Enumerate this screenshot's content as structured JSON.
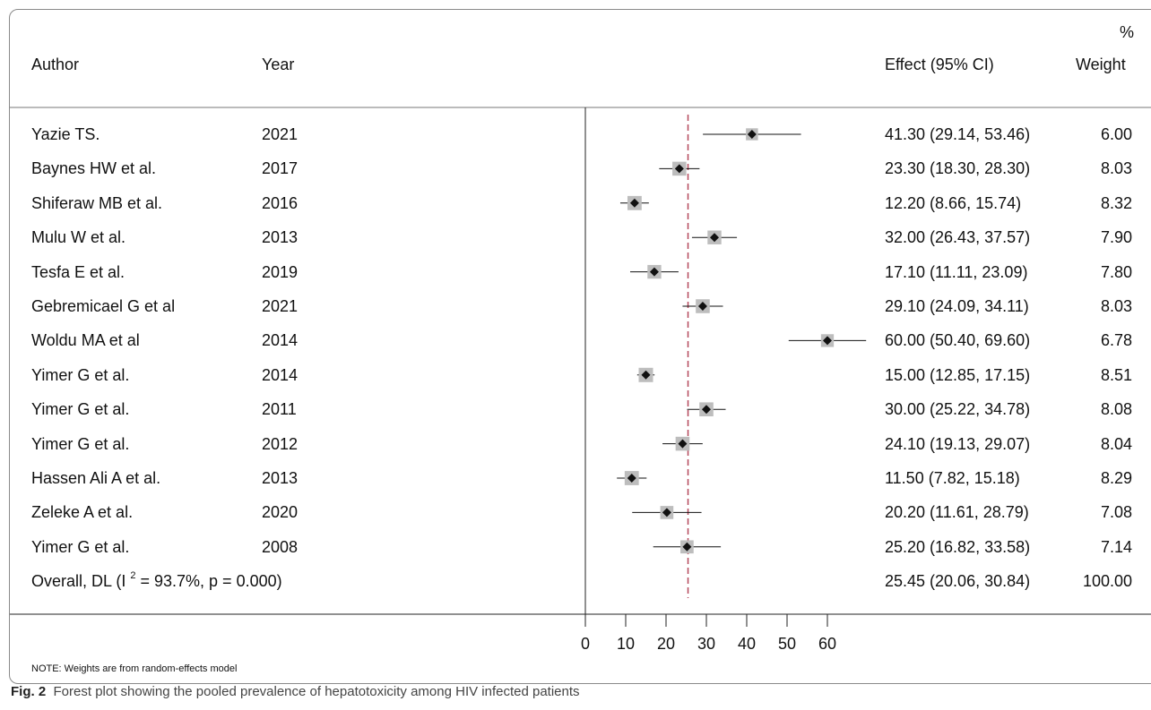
{
  "chart_data": {
    "type": "forest",
    "header": {
      "author": "Author",
      "year": "Year",
      "effect": "Effect (95% CI)",
      "weight_pct": "%",
      "weight": "Weight"
    },
    "studies": [
      {
        "author": "Yazie TS.",
        "year": "2021",
        "effect": 41.3,
        "lower": 29.14,
        "upper": 53.46,
        "effect_text": "41.30 (29.14, 53.46)",
        "weight": "6.00"
      },
      {
        "author": "Baynes HW et al.",
        "year": "2017",
        "effect": 23.3,
        "lower": 18.3,
        "upper": 28.3,
        "effect_text": "23.30 (18.30, 28.30)",
        "weight": "8.03"
      },
      {
        "author": "Shiferaw MB et al.",
        "year": "2016",
        "effect": 12.2,
        "lower": 8.66,
        "upper": 15.74,
        "effect_text": "12.20 (8.66, 15.74)",
        "weight": "8.32"
      },
      {
        "author": "Mulu W et al.",
        "year": "2013",
        "effect": 32.0,
        "lower": 26.43,
        "upper": 37.57,
        "effect_text": "32.00 (26.43, 37.57)",
        "weight": "7.90"
      },
      {
        "author": "Tesfa E et al.",
        "year": "2019",
        "effect": 17.1,
        "lower": 11.11,
        "upper": 23.09,
        "effect_text": "17.10 (11.11, 23.09)",
        "weight": "7.80"
      },
      {
        "author": "Gebremicael G et al",
        "year": "2021",
        "effect": 29.1,
        "lower": 24.09,
        "upper": 34.11,
        "effect_text": "29.10 (24.09, 34.11)",
        "weight": "8.03"
      },
      {
        "author": "Woldu MA et al",
        "year": "2014",
        "effect": 60.0,
        "lower": 50.4,
        "upper": 69.6,
        "effect_text": "60.00 (50.40, 69.60)",
        "weight": "6.78"
      },
      {
        "author": "Yimer G et al.",
        "year": "2014",
        "effect": 15.0,
        "lower": 12.85,
        "upper": 17.15,
        "effect_text": "15.00 (12.85, 17.15)",
        "weight": "8.51"
      },
      {
        "author": "Yimer G et al.",
        "year": "2011",
        "effect": 30.0,
        "lower": 25.22,
        "upper": 34.78,
        "effect_text": "30.00 (25.22, 34.78)",
        "weight": "8.08"
      },
      {
        "author": "Yimer G et al.",
        "year": "2012",
        "effect": 24.1,
        "lower": 19.13,
        "upper": 29.07,
        "effect_text": "24.10 (19.13, 29.07)",
        "weight": "8.04"
      },
      {
        "author": "Hassen Ali A et al.",
        "year": "2013",
        "effect": 11.5,
        "lower": 7.82,
        "upper": 15.18,
        "effect_text": "11.50 (7.82, 15.18)",
        "weight": "8.29"
      },
      {
        "author": "Zeleke A et al.",
        "year": "2020",
        "effect": 20.2,
        "lower": 11.61,
        "upper": 28.79,
        "effect_text": "20.20 (11.61, 28.79)",
        "weight": "7.08"
      },
      {
        "author": "Yimer G et al.",
        "year": "2008",
        "effect": 25.2,
        "lower": 16.82,
        "upper": 33.58,
        "effect_text": "25.20 (16.82, 33.58)",
        "weight": "7.14"
      }
    ],
    "overall": {
      "label_prefix": "Overall, DL (I",
      "label_sup": "2",
      "label_suffix": " = 93.7%, p = 0.000)",
      "effect": 25.45,
      "lower": 20.06,
      "upper": 30.84,
      "effect_text": "25.45 (20.06, 30.84)",
      "weight": "100.00"
    },
    "x_ticks": [
      0,
      10,
      20,
      30,
      40,
      50,
      60
    ],
    "xlim": [
      0,
      60
    ],
    "colors": {
      "box": "#bdbdbd",
      "reference_line": "#b5485a",
      "marker": "#111111"
    }
  },
  "note": "NOTE: Weights are from random-effects model",
  "caption": {
    "label": "Fig. 2",
    "text": "Forest plot showing the pooled prevalence of hepatotoxicity among HIV infected patients"
  }
}
